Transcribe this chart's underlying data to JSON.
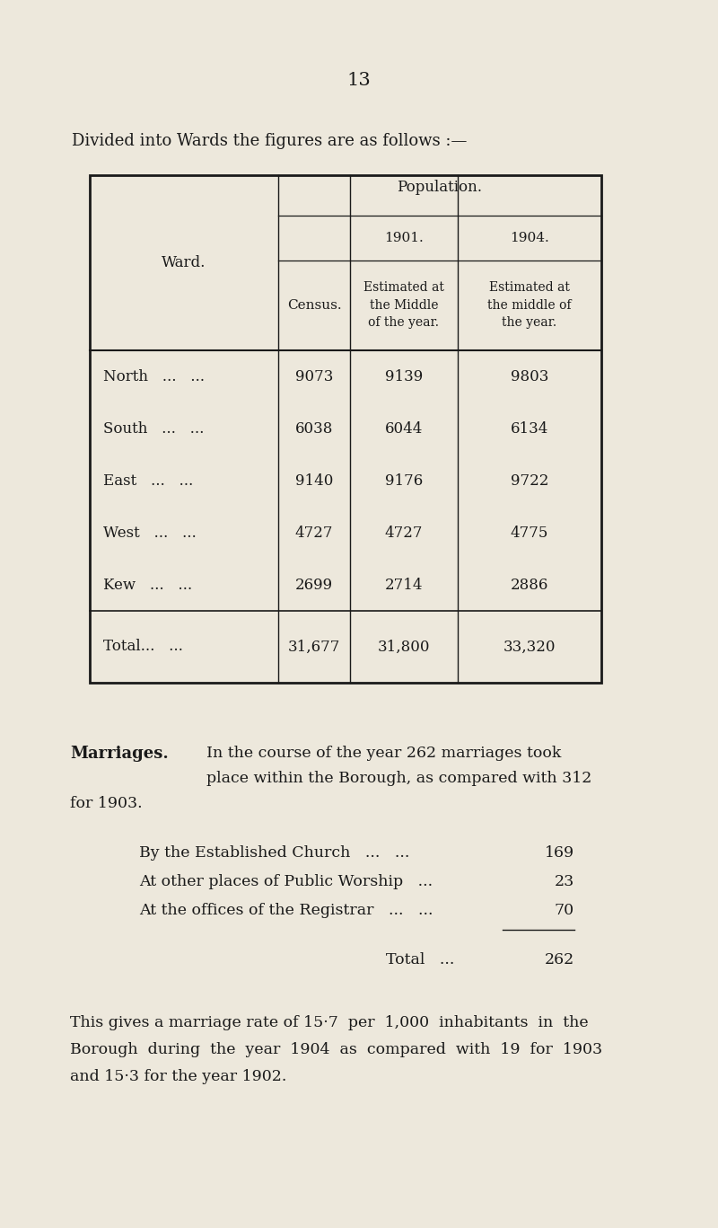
{
  "bg_color": "#ede8dc",
  "text_color": "#1a1a1a",
  "page_number": "13",
  "intro_text": "Divided into Wards the figures are as follows :—",
  "ward_names": [
    "North   ...   ...",
    "South   ...   ...",
    "East   ...   ...",
    "West   ...   ...",
    "Kew   ...   ..."
  ],
  "census_vals": [
    "9073",
    "6038",
    "9140",
    "4727",
    "2699"
  ],
  "pop1901_vals": [
    "9139",
    "6044",
    "9176",
    "4727",
    "2714"
  ],
  "pop1904_vals": [
    "9803",
    "6134",
    "9722",
    "4775",
    "2886"
  ],
  "total_row": [
    "Total...   ...",
    "31,677",
    "31,800",
    "33,320"
  ],
  "marriages_label": "Marriages.",
  "marriages_text_line1": "In the course of the year 262 marriages took",
  "marriages_text_line2": "place within the Borough, as compared with 312",
  "marriages_text_line3": "for 1903.",
  "marriage_breakdown_labels": [
    "By the Established Church   ...   ...",
    "At other places of Public Worship   ...",
    "At the offices of the Registrar   ...   ..."
  ],
  "marriage_breakdown_vals": [
    "169",
    "23",
    "70"
  ],
  "marriage_total_label": "Total   ...",
  "marriage_total_value": "262",
  "final_text_line1": "This gives a marriage rate of 15·7  per  1,000  inhabitants  in  the",
  "final_text_line2": "Borough  during  the  year  1904  as  compared  with  19  for  1903",
  "final_text_line3": "and 15·3 for the year 1902."
}
